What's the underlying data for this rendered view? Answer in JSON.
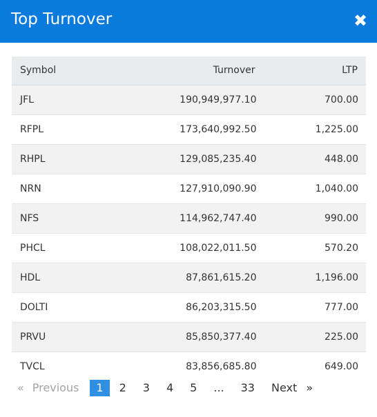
{
  "dialog": {
    "title": "Top Turnover",
    "close_icon": "close-icon",
    "close_glyph": "✖"
  },
  "table": {
    "headers": [
      "Symbol",
      "Turnover",
      "LTP"
    ],
    "rows": [
      {
        "symbol": "JFL",
        "turnover": "190,949,977.10",
        "ltp": "700.00"
      },
      {
        "symbol": "RFPL",
        "turnover": "173,640,992.50",
        "ltp": "1,225.00"
      },
      {
        "symbol": "RHPL",
        "turnover": "129,085,235.40",
        "ltp": "448.00"
      },
      {
        "symbol": "NRN",
        "turnover": "127,910,090.90",
        "ltp": "1,040.00"
      },
      {
        "symbol": "NFS",
        "turnover": "114,962,747.40",
        "ltp": "990.00"
      },
      {
        "symbol": "PHCL",
        "turnover": "108,022,011.50",
        "ltp": "570.20"
      },
      {
        "symbol": "HDL",
        "turnover": "87,861,615.20",
        "ltp": "1,196.00"
      },
      {
        "symbol": "DOLTI",
        "turnover": "86,203,315.50",
        "ltp": "777.00"
      },
      {
        "symbol": "PRVU",
        "turnover": "85,850,377.40",
        "ltp": "225.00"
      },
      {
        "symbol": "TVCL",
        "turnover": "83,856,685.80",
        "ltp": "649.00"
      }
    ]
  },
  "pagination": {
    "prev_arrow": "«",
    "prev_label": "Previous",
    "pages": [
      "1",
      "2",
      "3",
      "4",
      "5"
    ],
    "ellipsis": "...",
    "last_page": "33",
    "next_label": "Next",
    "next_arrow": "»",
    "current_page": "1"
  },
  "colors": {
    "header_bg": "#0a7bdc",
    "active_page_bg": "#2f8fe0",
    "table_header_bg": "#e9ecef",
    "row_stripe": "#f2f2f2"
  }
}
